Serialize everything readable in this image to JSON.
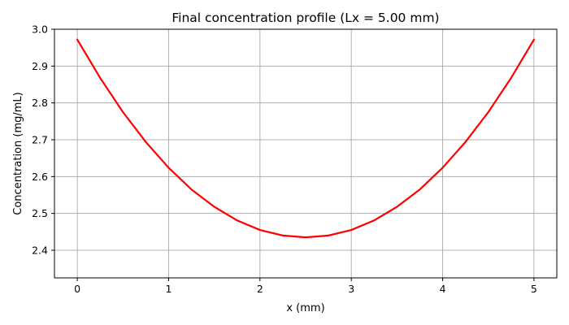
{
  "chart_data": {
    "type": "line",
    "title": "Final concentration profile (Lx = 5.00 mm)",
    "xlabel": "x (mm)",
    "ylabel": "Concentration (mg/mL)",
    "xlim": [
      -0.25,
      5.25
    ],
    "ylim": [
      2.325,
      3.0
    ],
    "xticks": [
      0,
      1,
      2,
      3,
      4,
      5
    ],
    "xtick_labels": [
      "0",
      "1",
      "2",
      "3",
      "4",
      "5"
    ],
    "yticks": [
      2.4,
      2.5,
      2.6,
      2.7,
      2.8,
      2.9,
      3.0
    ],
    "ytick_labels": [
      "2.4",
      "2.5",
      "2.6",
      "2.7",
      "2.8",
      "2.9",
      "3.0"
    ],
    "grid": true,
    "series": [
      {
        "color": "#ff0000",
        "x": [
          0,
          0.25,
          0.5,
          0.75,
          1.0,
          1.25,
          1.5,
          1.75,
          2.0,
          2.25,
          2.5,
          2.75,
          3.0,
          3.25,
          3.5,
          3.75,
          4.0,
          4.25,
          4.5,
          4.75,
          5.0
        ],
        "y": [
          2.972,
          2.868,
          2.775,
          2.694,
          2.624,
          2.565,
          2.518,
          2.481,
          2.455,
          2.44,
          2.435,
          2.44,
          2.455,
          2.481,
          2.518,
          2.565,
          2.624,
          2.694,
          2.775,
          2.868,
          2.972
        ]
      }
    ]
  }
}
